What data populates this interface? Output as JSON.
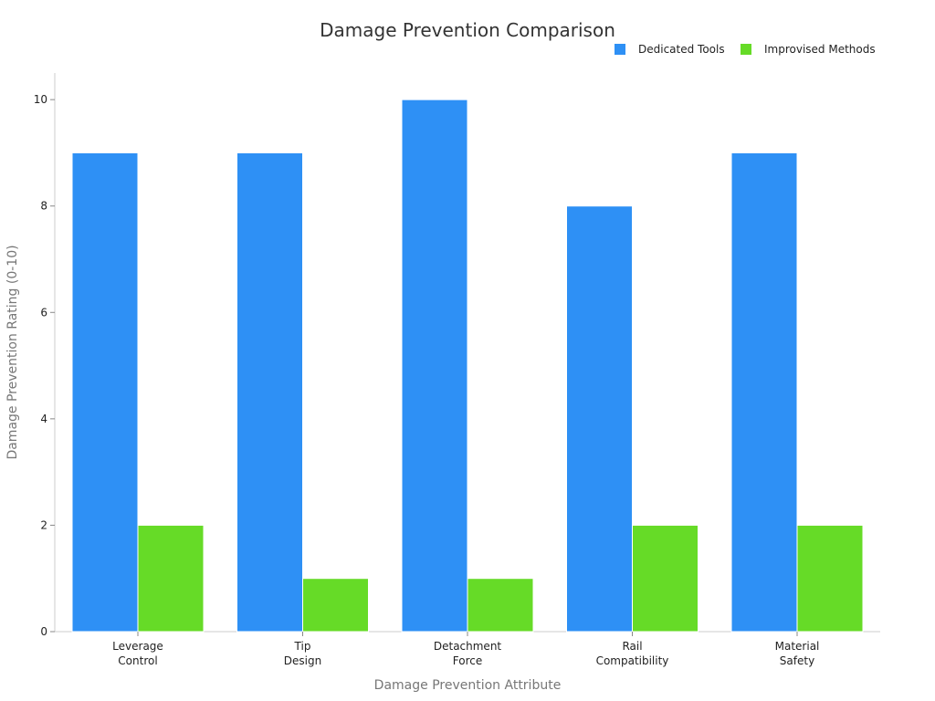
{
  "chart_data": {
    "type": "bar",
    "title": "Damage Prevention Comparison",
    "xlabel": "Damage Prevention Attribute",
    "ylabel": "Damage Prevention Rating (0-10)",
    "categories": [
      [
        "Leverage",
        "Control"
      ],
      [
        "Tip",
        "Design"
      ],
      [
        "Detachment",
        "Force"
      ],
      [
        "Rail",
        "Compatibility"
      ],
      [
        "Material",
        "Safety"
      ]
    ],
    "series": [
      {
        "name": "Dedicated Tools",
        "color": "#2e90f5",
        "values": [
          9,
          9,
          10,
          8,
          9
        ]
      },
      {
        "name": "Improvised Methods",
        "color": "#66db27",
        "values": [
          2,
          1,
          1,
          2,
          2
        ]
      }
    ],
    "ylim": [
      0,
      10.5
    ],
    "yticks": [
      0,
      2,
      4,
      6,
      8,
      10
    ],
    "legend_position": "top-right",
    "grid": false
  }
}
